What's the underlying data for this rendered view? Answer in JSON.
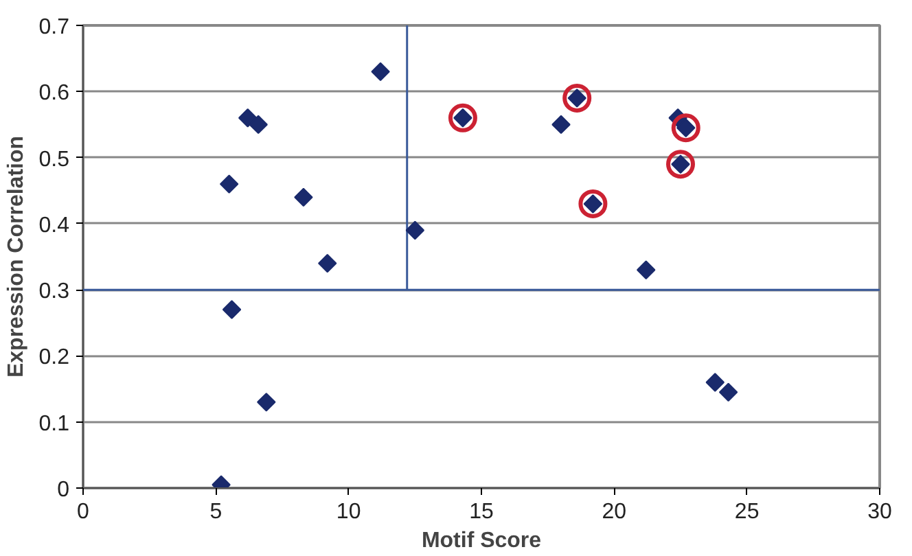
{
  "chart_data": {
    "type": "scatter",
    "xlabel": "Motif Score",
    "ylabel": "Expression Correlation",
    "xlim": [
      0,
      30
    ],
    "ylim": [
      0,
      0.7
    ],
    "xticks": [
      0,
      5,
      10,
      15,
      20,
      25,
      30
    ],
    "yticks": [
      0,
      0.1,
      0.2,
      0.3,
      0.4,
      0.5,
      0.6,
      0.7
    ],
    "grid": "y",
    "series": [
      {
        "color": "#1a2a6c",
        "marker": "diamond",
        "x": [
          11.2,
          6.2,
          6.6,
          5.5,
          8.3,
          9.2,
          12.5,
          5.6,
          6.9,
          5.2,
          14.3,
          18.6,
          19.2,
          22.5,
          22.7,
          22.4,
          18.0,
          21.2,
          23.8,
          24.3
        ],
        "values": [
          0.63,
          0.56,
          0.55,
          0.46,
          0.44,
          0.34,
          0.39,
          0.27,
          0.13,
          0.005,
          0.56,
          0.59,
          0.43,
          0.49,
          0.545,
          0.56,
          0.55,
          0.33,
          0.16,
          0.145
        ]
      },
      {
        "color": "#cc2233",
        "marker": "circle",
        "x": [
          14.3,
          18.6,
          19.2,
          22.5,
          22.7
        ],
        "values": [
          0.56,
          0.59,
          0.43,
          0.49,
          0.545
        ]
      }
    ],
    "ref_lines": [
      {
        "axis": "y",
        "value": 0.3,
        "color": "#3a5a9a"
      },
      {
        "axis": "x",
        "value": 12.2,
        "color": "#3a5a9a"
      }
    ]
  }
}
